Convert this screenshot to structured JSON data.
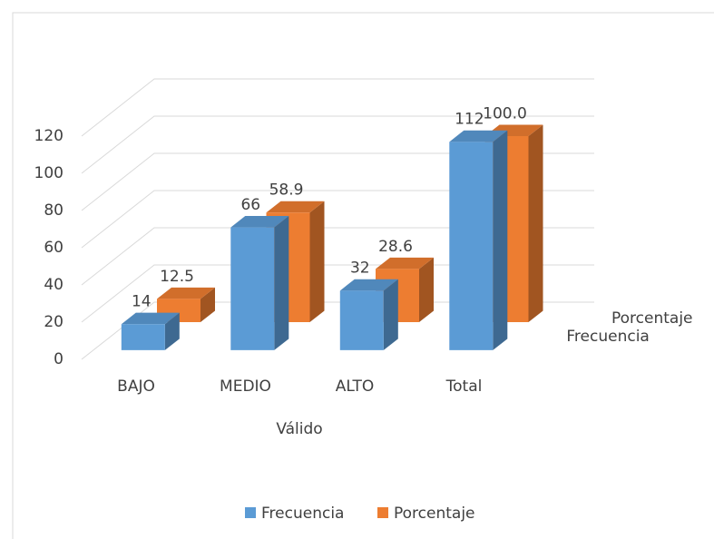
{
  "chart_data": {
    "type": "bar3d",
    "categories": [
      "BAJO",
      "MEDIO",
      "ALTO",
      "Total"
    ],
    "x_label": "Válido",
    "series": [
      {
        "name": "Frecuencia",
        "color": "#5b9bd5",
        "values": [
          14,
          66,
          32,
          112
        ]
      },
      {
        "name": "Porcentaje",
        "color": "#ed7d31",
        "values": [
          12.5,
          58.9,
          28.6,
          100.0
        ],
        "value_labels": [
          "12.5",
          "58.9",
          "28.6",
          "100.0"
        ]
      }
    ],
    "ylim": [
      0,
      120
    ],
    "yticks": [
      0,
      20,
      40,
      60,
      80,
      100,
      120
    ],
    "grid": true,
    "legend": "bottom"
  }
}
